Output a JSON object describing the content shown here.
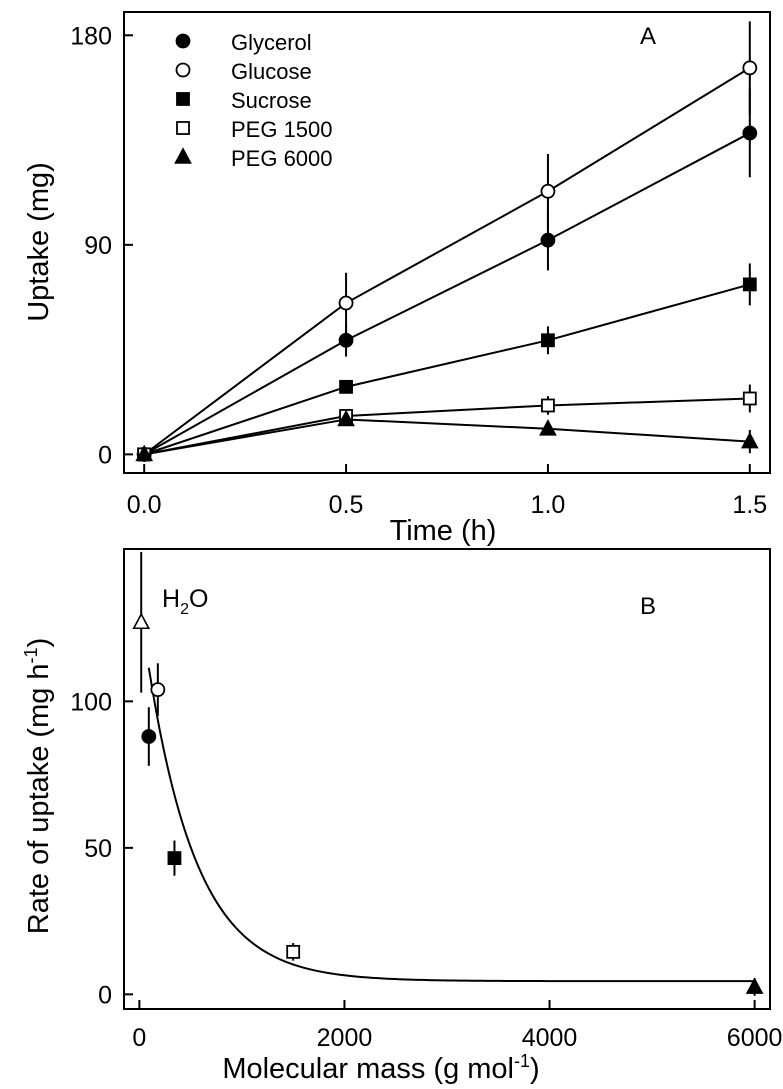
{
  "chart_data": [
    {
      "type": "line",
      "panel_letter": "A",
      "xlabel": "Time (h)",
      "ylabel": "Uptake (mg)",
      "xlim": [
        -0.05,
        1.55
      ],
      "ylim": [
        -8,
        190
      ],
      "x_ticks": [
        0.0,
        0.5,
        1.0,
        1.5
      ],
      "x_tick_labels": [
        "0.0",
        "0.5",
        "1.0",
        "1.5"
      ],
      "y_ticks": [
        0,
        90,
        180
      ],
      "y_tick_labels": [
        "0",
        "90",
        "180"
      ],
      "grid": false,
      "legend_position": "top-left",
      "x": [
        0.0,
        0.5,
        1.0,
        1.5
      ],
      "series": [
        {
          "name": "Glycerol",
          "marker": "filled-circle",
          "values": [
            0,
            49,
            92,
            138
          ],
          "errors": [
            0,
            7,
            13,
            19
          ]
        },
        {
          "name": "Glucose",
          "marker": "open-circle",
          "values": [
            0,
            65,
            113,
            166
          ],
          "errors": [
            0,
            13,
            16,
            20
          ]
        },
        {
          "name": "Sucrose",
          "marker": "filled-square",
          "values": [
            0,
            29,
            49,
            73
          ],
          "errors": [
            0,
            2,
            6,
            9
          ]
        },
        {
          "name": "PEG 1500",
          "marker": "open-square",
          "values": [
            0,
            16.5,
            21,
            24
          ],
          "errors": [
            0,
            2,
            4,
            6
          ]
        },
        {
          "name": "PEG 6000",
          "marker": "filled-triangle",
          "values": [
            0,
            15,
            11,
            5.5
          ],
          "errors": [
            0,
            2,
            2,
            5
          ]
        }
      ]
    },
    {
      "type": "scatter",
      "panel_letter": "B",
      "xlabel": "Molecular mass (g mol",
      "xlabel_sup": "-1",
      "xlabel_end": ")",
      "ylabel": "Rate of uptake (mg h",
      "ylabel_sup": "-1",
      "ylabel_end": ")",
      "xlim": [
        -150,
        6150
      ],
      "ylim": [
        -5,
        152
      ],
      "x_ticks": [
        0,
        2000,
        4000,
        6000
      ],
      "x_tick_labels": [
        "0",
        "2000",
        "4000",
        "6000"
      ],
      "y_ticks": [
        0,
        50,
        100
      ],
      "y_tick_labels": [
        "0",
        "50",
        "100"
      ],
      "grid": false,
      "annotation": {
        "text": "H",
        "sub": "2",
        "text_end": "O"
      },
      "points": [
        {
          "label": "H2O",
          "marker": "open-triangle",
          "x": 18,
          "y": 127,
          "error": 24
        },
        {
          "label": "Glucose",
          "marker": "open-circle",
          "x": 180,
          "y": 104,
          "error": 9
        },
        {
          "label": "Glycerol",
          "marker": "filled-circle",
          "x": 92,
          "y": 88,
          "error": 10
        },
        {
          "label": "Sucrose",
          "marker": "filled-square",
          "x": 342,
          "y": 46.5,
          "error": 6
        },
        {
          "label": "PEG 1500",
          "marker": "open-square",
          "x": 1500,
          "y": 14.5,
          "error": 3
        },
        {
          "label": "PEG 6000",
          "marker": "filled-triangle",
          "x": 6000,
          "y": 2.5,
          "error": 3
        }
      ],
      "fit_curve": {
        "description": "exponential decay fit",
        "x_start": 92,
        "x_end": 6000,
        "y0": 4.5,
        "amplitude": 107,
        "decay_constant": 480
      }
    }
  ]
}
